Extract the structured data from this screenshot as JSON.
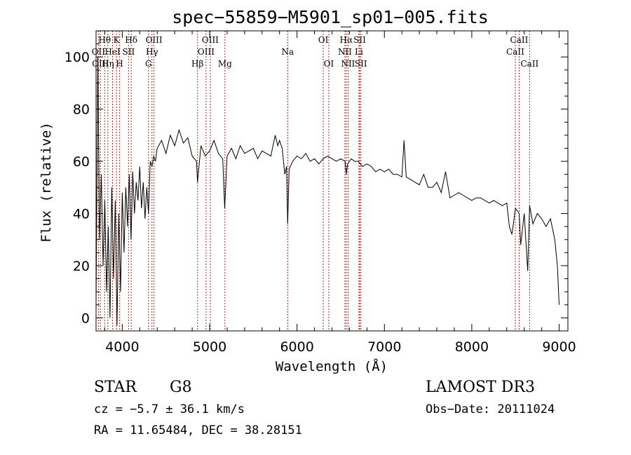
{
  "chart_data": {
    "type": "line",
    "title": "spec−55859−M5901_sp01−005.fits",
    "xlabel": "Wavelength (Å)",
    "ylabel": "Flux (relative)",
    "xlim": [
      3700,
      9100
    ],
    "ylim": [
      -5,
      110
    ],
    "x_ticks": [
      4000,
      5000,
      6000,
      7000,
      8000,
      9000
    ],
    "y_ticks": [
      0,
      20,
      40,
      60,
      80,
      100
    ],
    "series": [
      {
        "name": "flux",
        "x": [
          3700,
          3720,
          3740,
          3760,
          3780,
          3800,
          3820,
          3840,
          3860,
          3880,
          3900,
          3920,
          3940,
          3960,
          3980,
          4000,
          4020,
          4040,
          4060,
          4080,
          4100,
          4120,
          4140,
          4160,
          4180,
          4200,
          4220,
          4240,
          4260,
          4280,
          4300,
          4320,
          4340,
          4360,
          4380,
          4400,
          4450,
          4500,
          4550,
          4600,
          4650,
          4700,
          4750,
          4800,
          4850,
          4861,
          4900,
          4950,
          5000,
          5050,
          5100,
          5150,
          5172,
          5200,
          5250,
          5300,
          5350,
          5400,
          5450,
          5500,
          5550,
          5600,
          5650,
          5700,
          5750,
          5780,
          5800,
          5830,
          5860,
          5880,
          5893,
          5910,
          5950,
          6000,
          6050,
          6100,
          6150,
          6200,
          6250,
          6300,
          6350,
          6400,
          6450,
          6500,
          6550,
          6563,
          6580,
          6620,
          6660,
          6700,
          6750,
          6800,
          6850,
          6900,
          6950,
          7000,
          7050,
          7100,
          7150,
          7200,
          7225,
          7250,
          7300,
          7350,
          7400,
          7450,
          7500,
          7550,
          7600,
          7650,
          7700,
          7750,
          7800,
          7850,
          7900,
          7950,
          8000,
          8050,
          8100,
          8150,
          8200,
          8250,
          8300,
          8350,
          8400,
          8430,
          8460,
          8500,
          8542,
          8560,
          8600,
          8640,
          8662,
          8700,
          8750,
          8800,
          8850,
          8900,
          8950,
          8980,
          9000
        ],
        "values": [
          5,
          100,
          30,
          55,
          20,
          45,
          10,
          35,
          0,
          50,
          15,
          45,
          -3,
          40,
          10,
          48,
          25,
          50,
          35,
          55,
          30,
          56,
          40,
          52,
          45,
          58,
          42,
          52,
          38,
          50,
          40,
          60,
          58,
          62,
          60,
          65,
          68,
          63,
          70,
          66,
          72,
          67,
          69,
          62,
          60,
          52,
          66,
          62,
          64,
          68,
          63,
          61,
          42,
          62,
          65,
          61,
          66,
          63,
          64,
          65,
          61,
          64,
          63,
          62,
          70,
          66,
          68,
          65,
          55,
          58,
          36,
          57,
          60,
          62,
          61,
          63,
          60,
          61,
          59,
          61,
          62,
          61,
          60,
          61,
          60,
          55,
          59,
          61,
          60,
          60,
          58,
          59,
          58,
          56,
          57,
          56,
          57,
          55,
          55,
          54,
          68,
          54,
          53,
          52,
          51,
          55,
          50,
          50,
          52,
          48,
          56,
          46,
          47,
          48,
          47,
          46,
          45,
          46,
          46,
          45,
          44,
          45,
          44,
          43,
          44,
          35,
          32,
          42,
          40,
          28,
          40,
          18,
          43,
          36,
          40,
          38,
          35,
          38,
          30,
          20,
          5
        ]
      }
    ],
    "line_markers": [
      {
        "wavelength": 3727,
        "label": "OII",
        "row": 2
      },
      {
        "wavelength": 3750,
        "label": "OIII",
        "row": 3
      },
      {
        "wavelength": 3798,
        "label": "Hθ",
        "row": 1
      },
      {
        "wavelength": 3835,
        "label": "Hη",
        "row": 3
      },
      {
        "wavelength": 3889,
        "label": "HeI",
        "row": 2
      },
      {
        "wavelength": 3934,
        "label": "K",
        "row": 1
      },
      {
        "wavelength": 3970,
        "label": "H",
        "row": 3
      },
      {
        "wavelength": 4072,
        "label": "SII",
        "row": 2
      },
      {
        "wavelength": 4102,
        "label": "Hδ",
        "row": 1
      },
      {
        "wavelength": 4300,
        "label": "G",
        "row": 3
      },
      {
        "wavelength": 4340,
        "label": "Hγ",
        "row": 2
      },
      {
        "wavelength": 4363,
        "label": "OIII",
        "row": 1
      },
      {
        "wavelength": 4861,
        "label": "Hβ",
        "row": 3
      },
      {
        "wavelength": 4959,
        "label": "OIII",
        "row": 2
      },
      {
        "wavelength": 5007,
        "label": "OIII",
        "row": 1
      },
      {
        "wavelength": 5175,
        "label": "Mg",
        "row": 3
      },
      {
        "wavelength": 5893,
        "label": "Na",
        "row": 2
      },
      {
        "wavelength": 6300,
        "label": "OI",
        "row": 1
      },
      {
        "wavelength": 6364,
        "label": "OI",
        "row": 3
      },
      {
        "wavelength": 6548,
        "label": "NII",
        "row": 2
      },
      {
        "wavelength": 6563,
        "label": "Hα",
        "row": 1
      },
      {
        "wavelength": 6584,
        "label": "NII",
        "row": 3
      },
      {
        "wavelength": 6708,
        "label": "Li",
        "row": 2
      },
      {
        "wavelength": 6717,
        "label": "SII",
        "row": 1
      },
      {
        "wavelength": 6731,
        "label": "SII",
        "row": 3
      },
      {
        "wavelength": 8498,
        "label": "CaII",
        "row": 2
      },
      {
        "wavelength": 8542,
        "label": "CaII",
        "row": 1
      },
      {
        "wavelength": 8662,
        "label": "CaII",
        "row": 3
      }
    ]
  },
  "info": {
    "object_class": "STAR",
    "subclass": "G8",
    "survey": "LAMOST DR3",
    "cz": "cz = −5.7 ± 36.1 km/s",
    "obs_date": "Obs−Date: 20111024",
    "coords": "RA =  11.65484, DEC =  38.28151"
  }
}
